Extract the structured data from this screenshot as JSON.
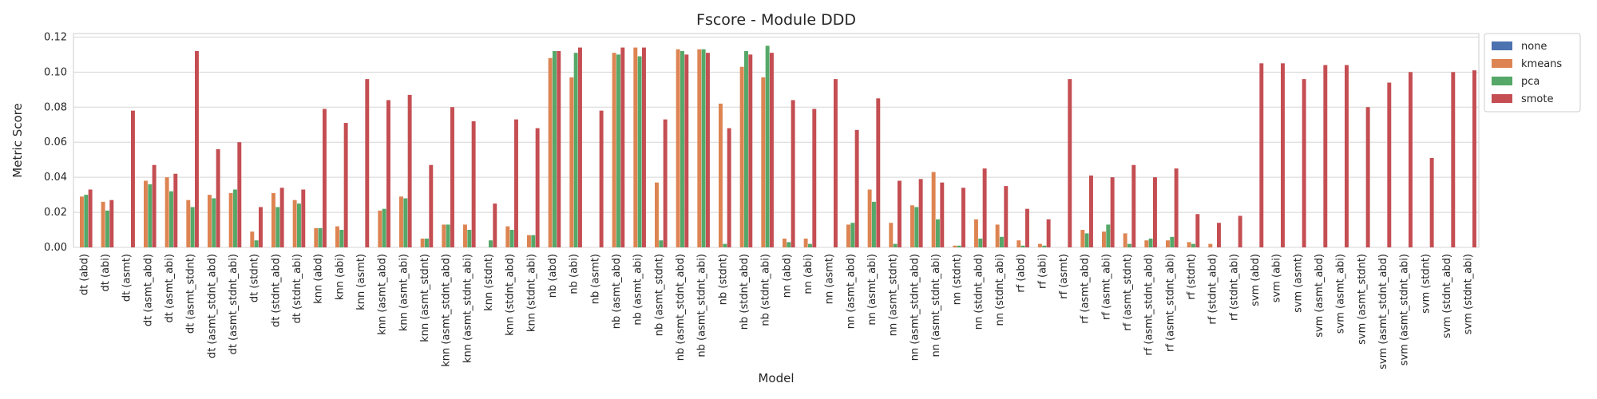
{
  "chart_data": {
    "type": "bar",
    "title": "Fscore - Module DDD",
    "xlabel": "Model",
    "ylabel": "Metric Score",
    "ylim": [
      0,
      0.122
    ],
    "yticks": [
      0.0,
      0.02,
      0.04,
      0.06,
      0.08,
      0.1,
      0.12
    ],
    "ytick_labels": [
      "0.00",
      "0.02",
      "0.04",
      "0.06",
      "0.08",
      "0.10",
      "0.12"
    ],
    "grid": true,
    "legend_position": "outside-top-right",
    "categories": [
      "dt (abd)",
      "dt (abi)",
      "dt (asmt)",
      "dt (asmt_abd)",
      "dt (asmt_abi)",
      "dt (asmt_stdnt)",
      "dt (asmt_stdnt_abd)",
      "dt (asmt_stdnt_abi)",
      "dt (stdnt)",
      "dt (stdnt_abd)",
      "dt (stdnt_abi)",
      "knn (abd)",
      "knn (abi)",
      "knn (asmt)",
      "knn (asmt_abd)",
      "knn (asmt_abi)",
      "knn (asmt_stdnt)",
      "knn (asmt_stdnt_abd)",
      "knn (asmt_stdnt_abi)",
      "knn (stdnt)",
      "knn (stdnt_abd)",
      "knn (stdnt_abi)",
      "nb (abd)",
      "nb (abi)",
      "nb (asmt)",
      "nb (asmt_abd)",
      "nb (asmt_abi)",
      "nb (asmt_stdnt)",
      "nb (asmt_stdnt_abd)",
      "nb (asmt_stdnt_abi)",
      "nb (stdnt)",
      "nb (stdnt_abd)",
      "nb (stdnt_abi)",
      "nn (abd)",
      "nn (abi)",
      "nn (asmt)",
      "nn (asmt_abd)",
      "nn (asmt_abi)",
      "nn (asmt_stdnt)",
      "nn (asmt_stdnt_abd)",
      "nn (asmt_stdnt_abi)",
      "nn (stdnt)",
      "nn (stdnt_abd)",
      "nn (stdnt_abi)",
      "rf (abd)",
      "rf (abi)",
      "rf (asmt)",
      "rf (asmt_abd)",
      "rf (asmt_abi)",
      "rf (asmt_stdnt)",
      "rf (asmt_stdnt_abd)",
      "rf (asmt_stdnt_abi)",
      "rf (stdnt)",
      "rf (stdnt_abd)",
      "rf (stdnt_abi)",
      "svm (abd)",
      "svm (abi)",
      "svm (asmt)",
      "svm (asmt_abd)",
      "svm (asmt_abi)",
      "svm (asmt_stdnt)",
      "svm (asmt_stdnt_abd)",
      "svm (asmt_stdnt_abi)",
      "svm (stdnt)",
      "svm (stdnt_abd)",
      "svm (stdnt_abi)"
    ],
    "series": [
      {
        "name": "none",
        "color": "#4c72b0",
        "values": [
          0,
          0,
          0,
          0,
          0,
          0,
          0,
          0,
          0,
          0,
          0,
          0,
          0,
          0,
          0,
          0,
          0,
          0,
          0,
          0,
          0,
          0,
          0,
          0,
          0,
          0,
          0,
          0,
          0,
          0,
          0,
          0,
          0,
          0,
          0,
          0,
          0,
          0,
          0,
          0,
          0,
          0,
          0,
          0,
          0,
          0,
          0,
          0,
          0,
          0,
          0,
          0,
          0,
          0,
          0,
          0,
          0,
          0,
          0,
          0,
          0,
          0,
          0,
          0,
          0,
          0
        ]
      },
      {
        "name": "kmeans",
        "color": "#dd8452",
        "values": [
          0.029,
          0.026,
          0,
          0.038,
          0.04,
          0.027,
          0.03,
          0.031,
          0.009,
          0.031,
          0.027,
          0.011,
          0.012,
          0,
          0.021,
          0.029,
          0.005,
          0.013,
          0.013,
          0,
          0.012,
          0.007,
          0.108,
          0.097,
          0,
          0.111,
          0.114,
          0.037,
          0.113,
          0.113,
          0.082,
          0.103,
          0.097,
          0.005,
          0.005,
          0,
          0.013,
          0.033,
          0.014,
          0.024,
          0.043,
          0.001,
          0.016,
          0.013,
          0.004,
          0.002,
          0,
          0.01,
          0.009,
          0.008,
          0.004,
          0.004,
          0.003,
          0.002,
          0,
          0,
          0,
          0,
          0,
          0,
          0,
          0,
          0,
          0,
          0,
          0
        ]
      },
      {
        "name": "pca",
        "color": "#55a868",
        "values": [
          0.03,
          0.021,
          0,
          0.036,
          0.032,
          0.023,
          0.028,
          0.033,
          0.004,
          0.023,
          0.025,
          0.011,
          0.01,
          0,
          0.022,
          0.028,
          0.005,
          0.013,
          0.01,
          0.004,
          0.01,
          0.007,
          0.112,
          0.111,
          0,
          0.11,
          0.109,
          0.004,
          0.112,
          0.113,
          0.002,
          0.112,
          0.115,
          0.003,
          0.002,
          0,
          0.014,
          0.026,
          0.002,
          0.023,
          0.016,
          0.001,
          0.005,
          0.006,
          0.001,
          0.001,
          0,
          0.008,
          0.013,
          0.002,
          0.005,
          0.006,
          0.002,
          0,
          0,
          0,
          0,
          0,
          0,
          0,
          0,
          0,
          0,
          0,
          0,
          0
        ]
      },
      {
        "name": "smote",
        "color": "#c44e52",
        "values": [
          0.033,
          0.027,
          0.078,
          0.047,
          0.042,
          0.112,
          0.056,
          0.06,
          0.023,
          0.034,
          0.033,
          0.079,
          0.071,
          0.096,
          0.084,
          0.087,
          0.047,
          0.08,
          0.072,
          0.025,
          0.073,
          0.068,
          0.112,
          0.114,
          0.078,
          0.114,
          0.114,
          0.073,
          0.11,
          0.111,
          0.068,
          0.11,
          0.111,
          0.084,
          0.079,
          0.096,
          0.067,
          0.085,
          0.038,
          0.039,
          0.037,
          0.034,
          0.045,
          0.035,
          0.022,
          0.016,
          0.096,
          0.041,
          0.04,
          0.047,
          0.04,
          0.045,
          0.019,
          0.014,
          0.018,
          0.105,
          0.105,
          0.096,
          0.104,
          0.104,
          0.08,
          0.094,
          0.1,
          0.051,
          0.1,
          0.101
        ]
      }
    ]
  }
}
